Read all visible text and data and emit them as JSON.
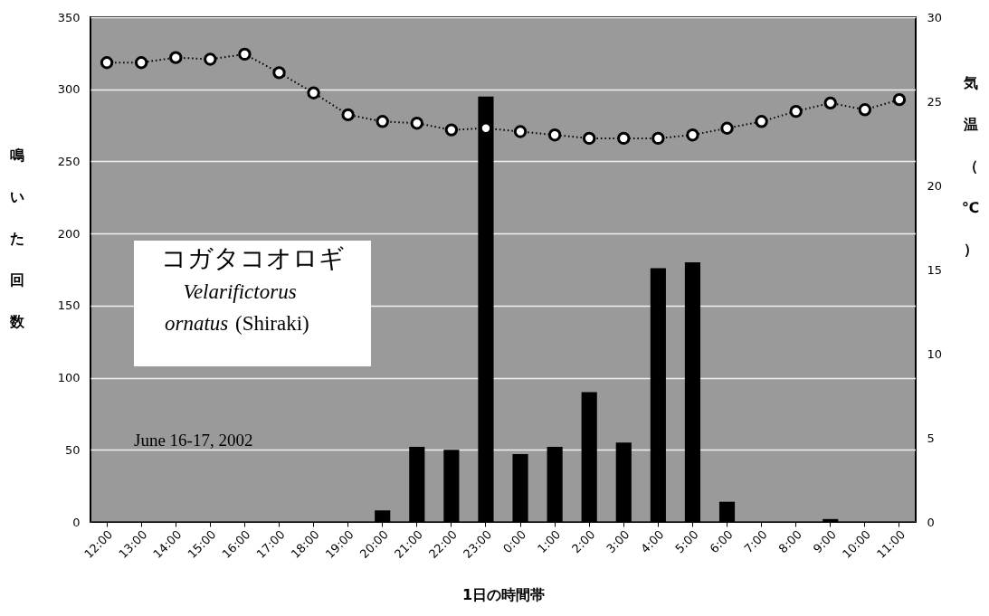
{
  "chart_data": {
    "type": "bar",
    "categories": [
      "12:00",
      "13:00",
      "14:00",
      "15:00",
      "16:00",
      "17:00",
      "18:00",
      "19:00",
      "20:00",
      "21:00",
      "22:00",
      "23:00",
      "0:00",
      "1:00",
      "2:00",
      "3:00",
      "4:00",
      "5:00",
      "6:00",
      "7:00",
      "8:00",
      "9:00",
      "10:00",
      "11:00"
    ],
    "series": [
      {
        "color": "#000000",
        "values": [
          0,
          0,
          0,
          0,
          0,
          0,
          0,
          0,
          8,
          52,
          50,
          295,
          47,
          52,
          90,
          55,
          176,
          180,
          14,
          0,
          0,
          2,
          0,
          0
        ]
      },
      {
        "type": "line",
        "axis": "y2",
        "color": "#000000",
        "values": [
          27.3,
          27.3,
          27.6,
          27.5,
          27.8,
          26.7,
          25.5,
          24.2,
          23.8,
          23.7,
          23.3,
          23.4,
          23.2,
          23.0,
          22.8,
          22.8,
          22.8,
          23.0,
          23.4,
          23.8,
          24.4,
          24.9,
          24.5,
          25.1
        ]
      }
    ],
    "xlabel": "1日の時間帯",
    "ylabel": "鳴いた回数",
    "y2label": "気温（℃）",
    "ylim": [
      0,
      350
    ],
    "yticks": [
      0,
      50,
      100,
      150,
      200,
      250,
      300,
      350
    ],
    "y2lim": [
      0,
      30
    ],
    "y2ticks": [
      0,
      5,
      10,
      15,
      20,
      25,
      30
    ],
    "grid": "y",
    "marker": "circle",
    "line_style": "dotted",
    "annotations": [
      "コガタコオロギ",
      "Velarifictorus",
      "ornatus",
      "(Shiraki)",
      "June 16-17, 2002"
    ]
  }
}
